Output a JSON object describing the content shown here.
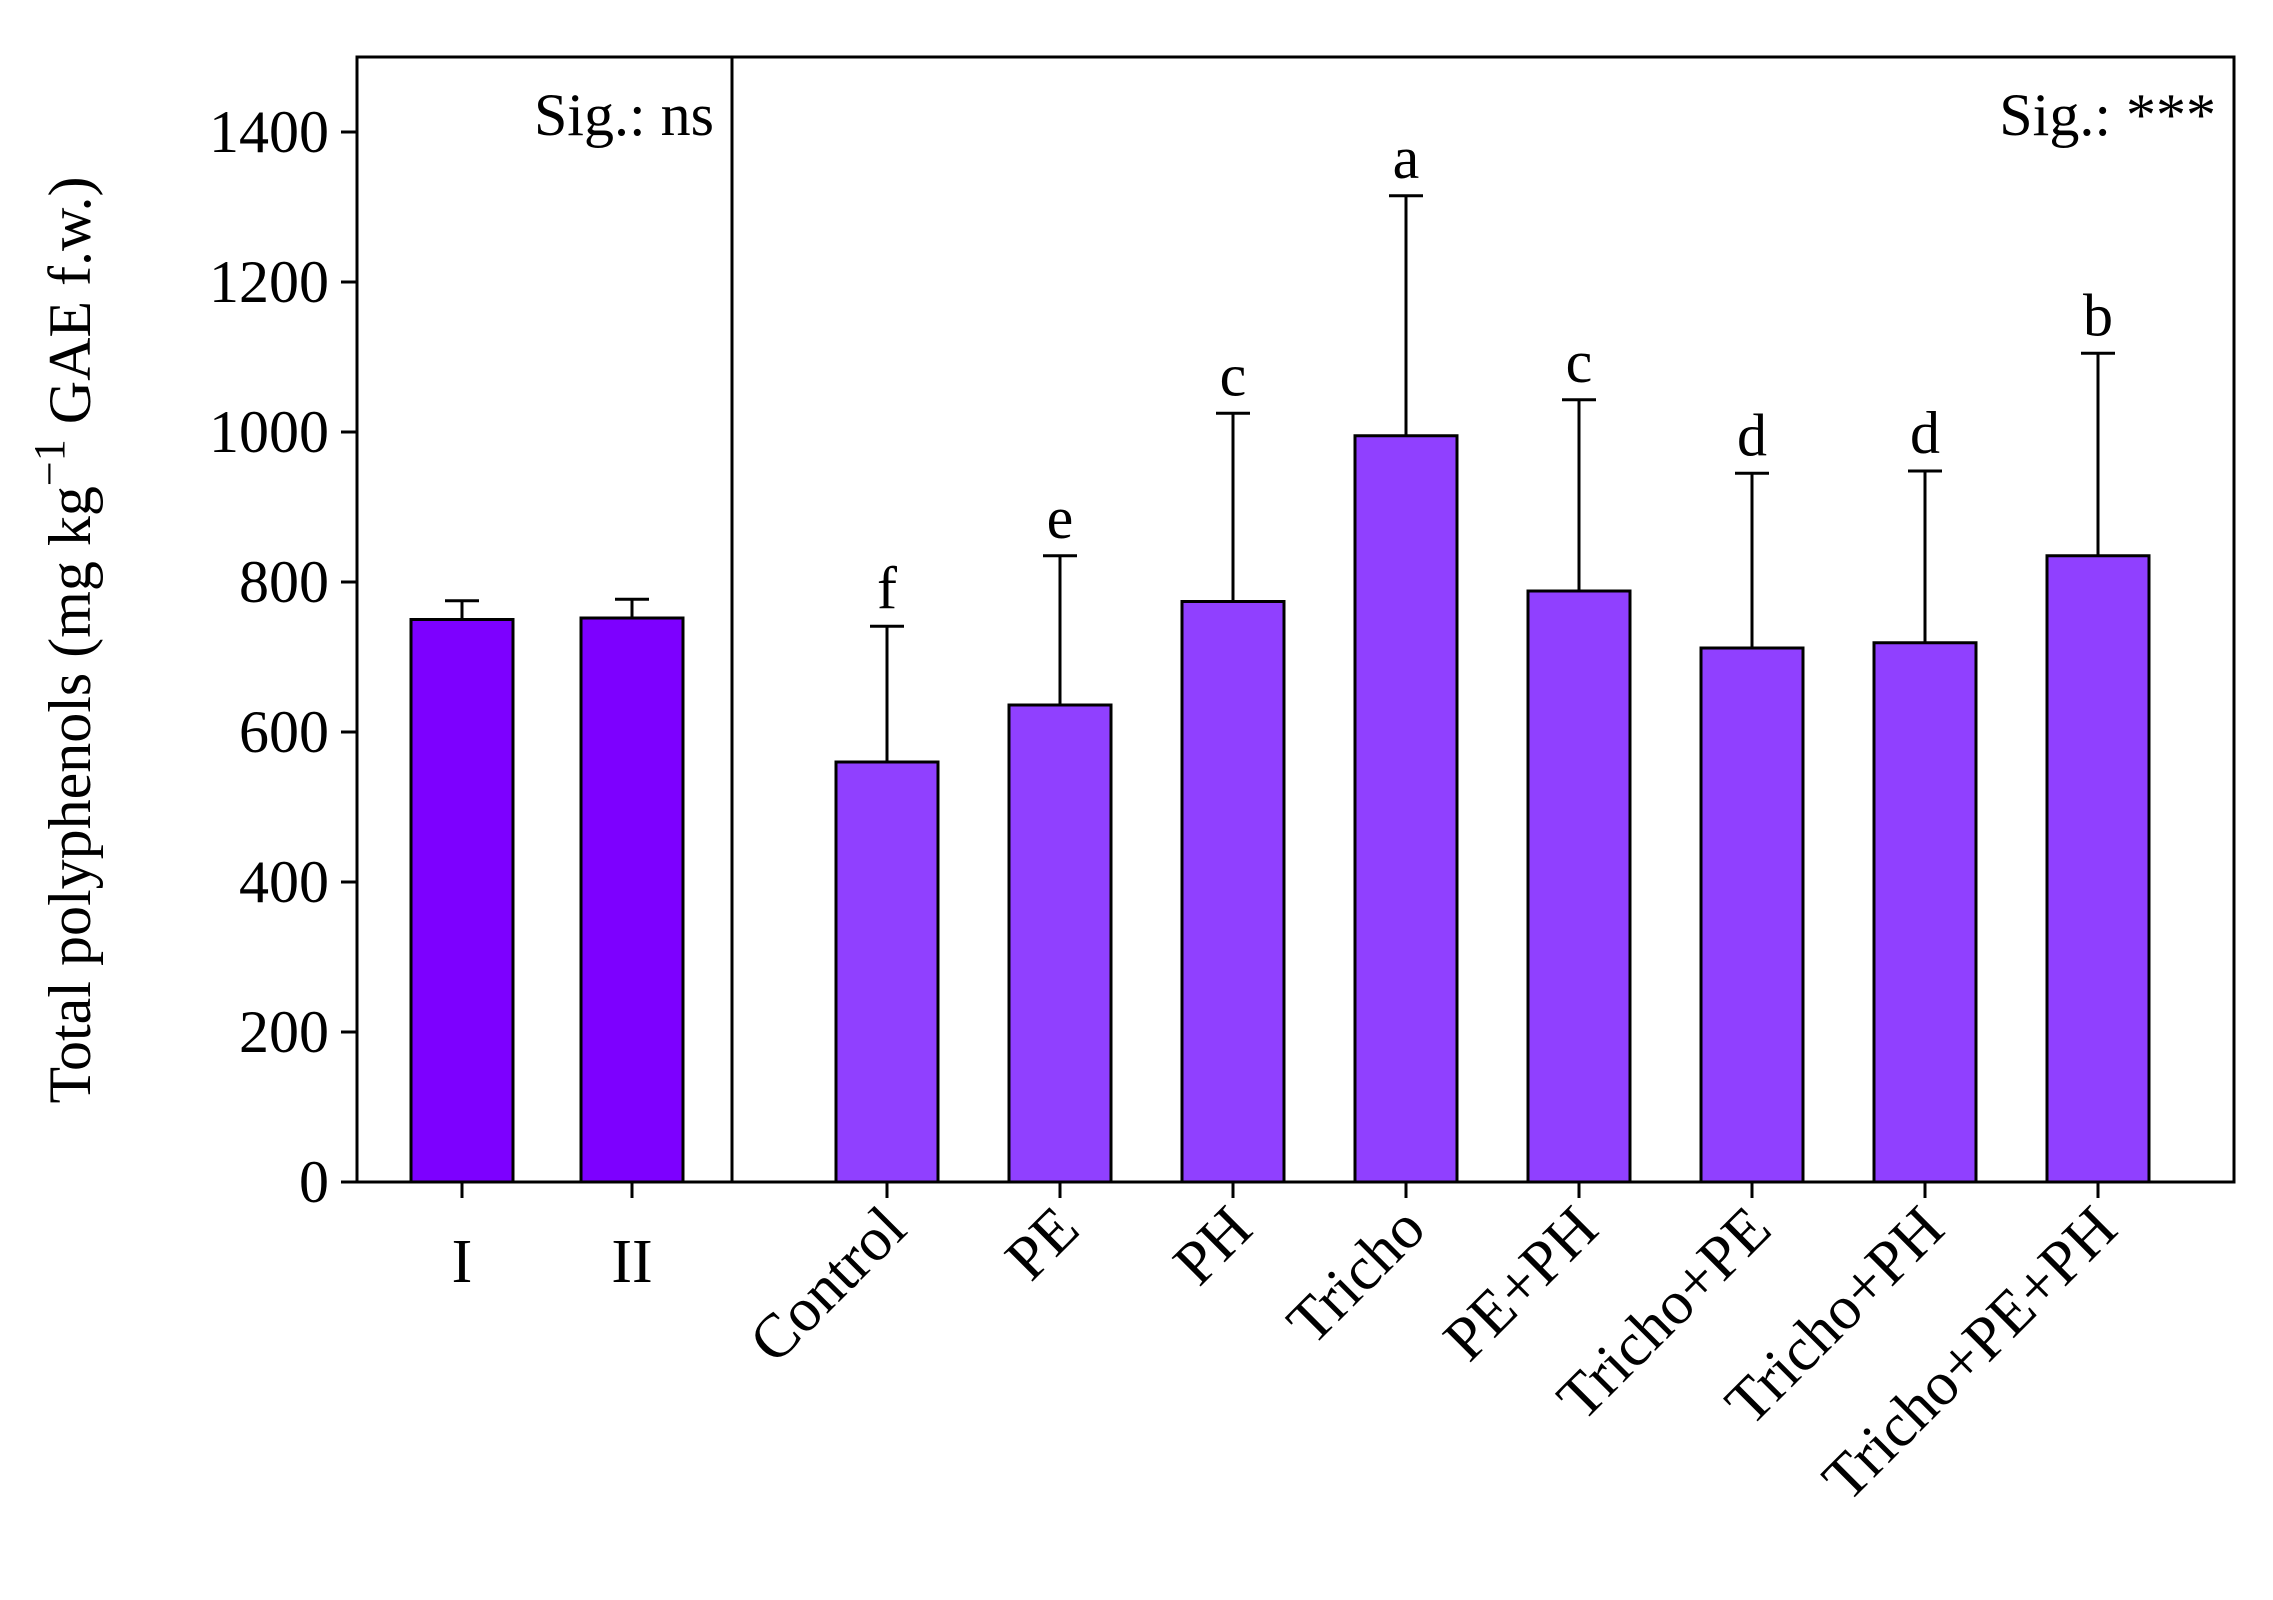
{
  "chart_data": {
    "type": "bar",
    "ylabel": "Total polyphenols (mg kg",
    "ylabel_sup": "−1",
    "ylabel_tail": " GAE f.w.)",
    "ylim": [
      0,
      1500
    ],
    "yticks": [
      "0",
      "200",
      "400",
      "600",
      "800",
      "1000",
      "1200",
      "1400"
    ],
    "ytick_values": [
      0,
      200,
      400,
      600,
      800,
      1000,
      1200,
      1400
    ],
    "panels": [
      {
        "significance": "Sig.: ns",
        "color": "#7d00ff",
        "categories": [
          "I",
          "II"
        ],
        "values": [
          750,
          752
        ],
        "errors": [
          25,
          25
        ],
        "letters": [
          "",
          ""
        ]
      },
      {
        "significance": "Sig.: ***",
        "color": "#9040ff",
        "categories": [
          "Control",
          "PE",
          "PH",
          "Tricho",
          "PE+PH",
          "Tricho+PE",
          "Tricho+PH",
          "Tricho+PE+PH"
        ],
        "values": [
          560,
          636,
          774,
          995,
          788,
          712,
          719,
          835
        ],
        "errors": [
          181,
          199,
          251,
          320,
          255,
          233,
          229,
          270
        ],
        "letters": [
          "f",
          "e",
          "c",
          "a",
          "c",
          "d",
          "d",
          "b"
        ]
      }
    ]
  }
}
